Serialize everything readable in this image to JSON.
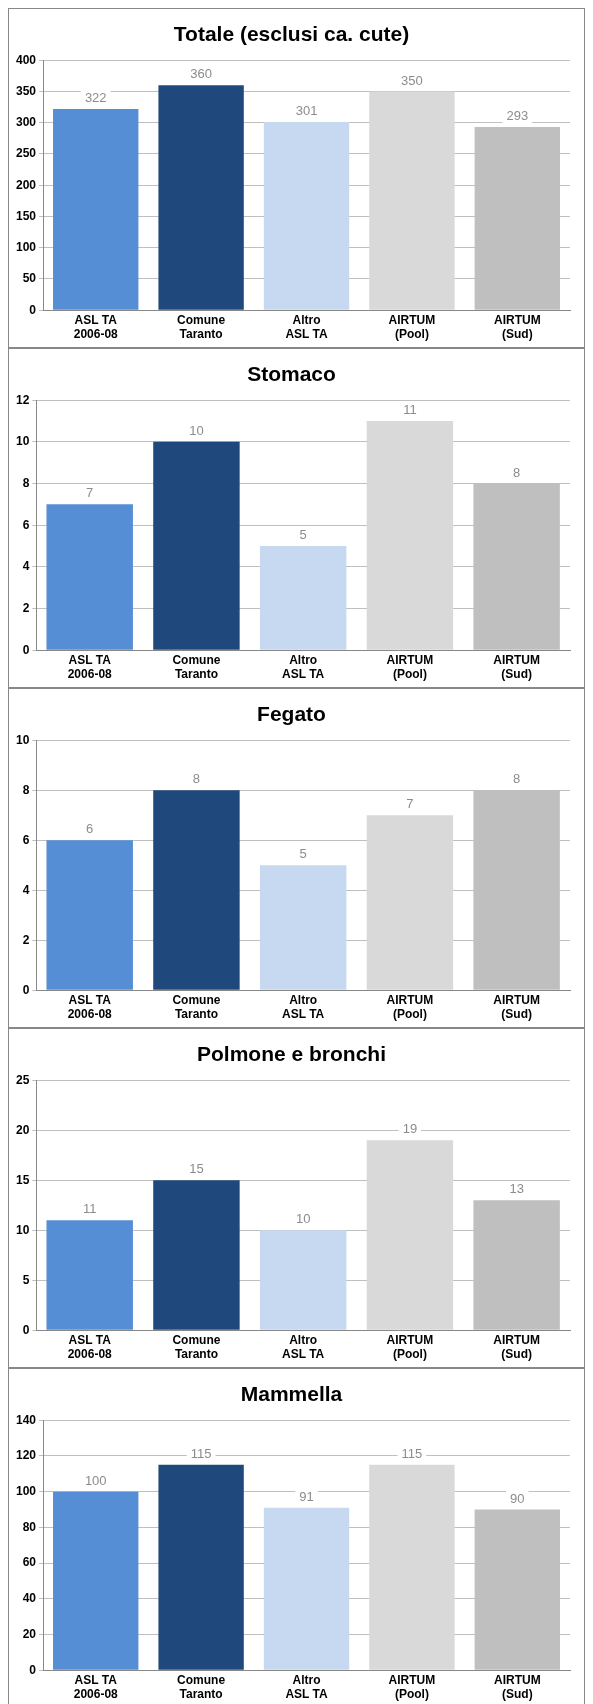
{
  "chart_data": [
    {
      "type": "bar",
      "title": "Totale (esclusi ca. cute)",
      "categories": [
        "ASL TA\n2006-08",
        "Comune\nTaranto",
        "Altro\nASL TA",
        "AIRTUM\n(Pool)",
        "AIRTUM\n(Sud)"
      ],
      "values": [
        322,
        360,
        301,
        350,
        293
      ],
      "colors": [
        "#558ed5",
        "#1f497d",
        "#c6d9f1",
        "#d9d9d9",
        "#bfbfbf"
      ],
      "ylim": [
        0,
        400
      ],
      "yticks": [
        0,
        50,
        100,
        150,
        200,
        250,
        300,
        350,
        400
      ],
      "grid": "y",
      "data_labels": true,
      "legend": false
    },
    {
      "type": "bar",
      "title": "Stomaco",
      "categories": [
        "ASL TA\n2006-08",
        "Comune\nTaranto",
        "Altro\nASL TA",
        "AIRTUM\n(Pool)",
        "AIRTUM\n(Sud)"
      ],
      "values": [
        7,
        10,
        5,
        11,
        8
      ],
      "colors": [
        "#558ed5",
        "#1f497d",
        "#c6d9f1",
        "#d9d9d9",
        "#bfbfbf"
      ],
      "ylim": [
        0,
        12
      ],
      "yticks": [
        0,
        2,
        4,
        6,
        8,
        10,
        12
      ],
      "grid": "y",
      "data_labels": true,
      "legend": false
    },
    {
      "type": "bar",
      "title": "Fegato",
      "categories": [
        "ASL TA\n2006-08",
        "Comune\nTaranto",
        "Altro\nASL TA",
        "AIRTUM\n(Pool)",
        "AIRTUM\n(Sud)"
      ],
      "values": [
        6,
        8,
        5,
        7,
        8
      ],
      "colors": [
        "#558ed5",
        "#1f497d",
        "#c6d9f1",
        "#d9d9d9",
        "#bfbfbf"
      ],
      "ylim": [
        0,
        10
      ],
      "yticks": [
        0,
        2,
        4,
        6,
        8,
        10
      ],
      "grid": "y",
      "data_labels": true,
      "legend": false
    },
    {
      "type": "bar",
      "title": "Polmone e bronchi",
      "categories": [
        "ASL TA\n2006-08",
        "Comune\nTaranto",
        "Altro\nASL TA",
        "AIRTUM\n(Pool)",
        "AIRTUM\n(Sud)"
      ],
      "values": [
        11,
        15,
        10,
        19,
        13
      ],
      "colors": [
        "#558ed5",
        "#1f497d",
        "#c6d9f1",
        "#d9d9d9",
        "#bfbfbf"
      ],
      "ylim": [
        0,
        25
      ],
      "yticks": [
        0,
        5,
        10,
        15,
        20,
        25
      ],
      "grid": "y",
      "data_labels": true,
      "legend": false
    },
    {
      "type": "bar",
      "title": "Mammella",
      "categories": [
        "ASL TA\n2006-08",
        "Comune\nTaranto",
        "Altro\nASL TA",
        "AIRTUM\n(Pool)",
        "AIRTUM\n(Sud)"
      ],
      "values": [
        100,
        115,
        91,
        115,
        90
      ],
      "colors": [
        "#558ed5",
        "#1f497d",
        "#c6d9f1",
        "#d9d9d9",
        "#bfbfbf"
      ],
      "ylim": [
        0,
        140
      ],
      "yticks": [
        0,
        20,
        40,
        60,
        80,
        100,
        120,
        140
      ],
      "grid": "y",
      "data_labels": true,
      "legend": false
    }
  ]
}
